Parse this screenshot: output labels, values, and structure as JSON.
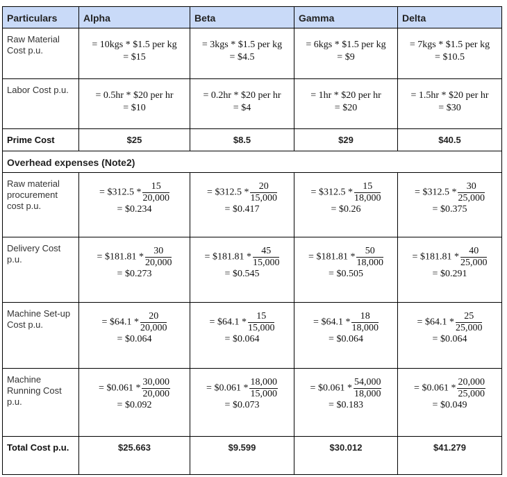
{
  "header": {
    "particulars": "Particulars",
    "columns": [
      "Alpha",
      "Beta",
      "Gamma",
      "Delta"
    ]
  },
  "rows": {
    "raw_material": {
      "label": "Raw Material Cost p.u.",
      "cells": [
        [
          "= 10kgs * $1.5 per kg",
          "= $15"
        ],
        [
          "= 3kgs * $1.5 per kg",
          "= $4.5"
        ],
        [
          "= 6kgs * $1.5 per kg",
          "= $9"
        ],
        [
          "= 7kgs * $1.5 per kg",
          "= $10.5"
        ]
      ]
    },
    "labor": {
      "label": "Labor Cost p.u.",
      "cells": [
        [
          "= 0.5hr * $20 per hr",
          "= $10"
        ],
        [
          "= 0.2hr * $20 per hr",
          "= $4"
        ],
        [
          "= 1hr * $20 per hr",
          "= $20"
        ],
        [
          "= 1.5hr * $20 per hr",
          "= $30"
        ]
      ]
    },
    "prime": {
      "label": "Prime Cost",
      "values": [
        "$25",
        "$8.5",
        "$29",
        "$40.5"
      ]
    },
    "overhead_title": "Overhead expenses (Note2)",
    "procurement": {
      "label": "Raw material procurement cost p.u.",
      "cells": [
        {
          "lhs": "= $312.5 *",
          "num": "15",
          "den": "20,000",
          "result": "= $0.234"
        },
        {
          "lhs": "= $312.5 *",
          "num": "20",
          "den": "15,000",
          "result": "= $0.417"
        },
        {
          "lhs": "= $312.5 *",
          "num": "15",
          "den": "18,000",
          "result": "= $0.26"
        },
        {
          "lhs": "= $312.5 *",
          "num": "30",
          "den": "25,000",
          "result": "= $0.375"
        }
      ]
    },
    "delivery": {
      "label": "Delivery Cost p.u.",
      "cells": [
        {
          "lhs": "= $181.81 *",
          "num": "30",
          "den": "20,000",
          "result": "= $0.273"
        },
        {
          "lhs": "= $181.81 *",
          "num": "45",
          "den": "15,000",
          "result": "= $0.545"
        },
        {
          "lhs": "= $181.81 *",
          "num": "50",
          "den": "18,000",
          "result": "= $0.505"
        },
        {
          "lhs": "= $181.81 *",
          "num": "40",
          "den": "25,000",
          "result": "= $0.291"
        }
      ]
    },
    "setup": {
      "label": "Machine Set-up Cost p.u.",
      "cells": [
        {
          "lhs": "= $64.1 *",
          "num": "20",
          "den": "20,000",
          "result": "= $0.064"
        },
        {
          "lhs": "= $64.1 *",
          "num": "15",
          "den": "15,000",
          "result": "= $0.064"
        },
        {
          "lhs": "= $64.1 *",
          "num": "18",
          "den": "18,000",
          "result": "= $0.064"
        },
        {
          "lhs": "= $64.1 *",
          "num": "25",
          "den": "25,000",
          "result": "= $0.064"
        }
      ]
    },
    "running": {
      "label": "Machine Running Cost p.u.",
      "cells": [
        {
          "lhs": "= $0.061 *",
          "num": "30,000",
          "den": "20,000",
          "result": "= $0.092"
        },
        {
          "lhs": "= $0.061 *",
          "num": "18,000",
          "den": "15,000",
          "result": "= $0.073"
        },
        {
          "lhs": "= $0.061 *",
          "num": "54,000",
          "den": "18,000",
          "result": "= $0.183"
        },
        {
          "lhs": "= $0.061 *",
          "num": "20,000",
          "den": "25,000",
          "result": "= $0.049"
        }
      ]
    },
    "total": {
      "label": "Total Cost p.u.",
      "values": [
        "$25.663",
        "$9.599",
        "$30.012",
        "$41.279"
      ]
    }
  }
}
